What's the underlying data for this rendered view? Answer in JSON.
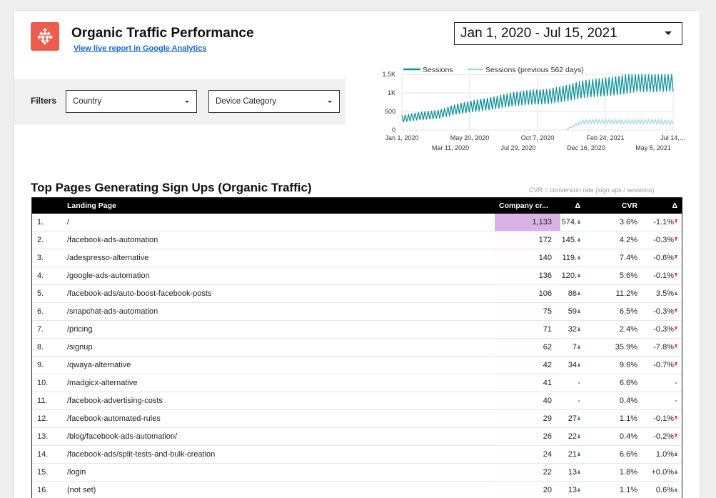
{
  "header": {
    "title": "Organic Traffic Performance",
    "live_link": "View live report in Google Analytics",
    "date_range": "Jan 1, 2020 - Jul 15, 2021",
    "logo_color": "#ea5d4f"
  },
  "filters": {
    "label": "Filters",
    "country": "Country",
    "device": "Device Category"
  },
  "chart_data": {
    "type": "line",
    "series": [
      {
        "name": "Sessions",
        "color": "#12939a"
      },
      {
        "name": "Sessions (previous 562 days)",
        "color": "#a6d6e0"
      }
    ],
    "y_ticks": [
      "1.5K",
      "1K",
      "500",
      "0"
    ],
    "ylim": [
      0,
      1500
    ],
    "x_ticks_top": [
      "Jan 1, 2020",
      "May 20, 2020",
      "Oct 7, 2020",
      "Feb 24, 2021",
      "Jul 14,…"
    ],
    "x_ticks_bottom": [
      "Mar 11, 2020",
      "Jul 29, 2020",
      "Dec 16, 2020",
      "May 5, 2021"
    ],
    "sessions_approx": [
      300,
      380,
      420,
      560,
      650,
      720,
      820,
      880,
      900,
      980,
      1100,
      1150,
      1200,
      1300,
      1300,
      1320
    ],
    "previous_approx": [
      0,
      0,
      0,
      0,
      0,
      0,
      0,
      0,
      0,
      0,
      220,
      230,
      220,
      220,
      230,
      200
    ]
  },
  "table": {
    "title": "Top Pages Generating Sign Ups (Organic Traffic)",
    "note": "CVR = conversion rate (sign ups / sessions)",
    "headers": {
      "page": "Landing Page",
      "signups": "Company cr...",
      "d1": "Δ",
      "cvr": "CVR",
      "d2": "Δ"
    },
    "highlight_color": "#d9b3e6",
    "rows": [
      {
        "idx": "1.",
        "page": "/",
        "signups": "1,133",
        "d1": "574.",
        "d1_dir": "up",
        "cvr": "3.6%",
        "d2": "-1.1%",
        "d2_dir": "down"
      },
      {
        "idx": "2.",
        "page": "/facebook-ads-automation",
        "signups": "172",
        "d1": "145.",
        "d1_dir": "up",
        "cvr": "4.2%",
        "d2": "-0.3%",
        "d2_dir": "down"
      },
      {
        "idx": "3.",
        "page": "/adespresso-alternative",
        "signups": "140",
        "d1": "119.",
        "d1_dir": "up",
        "cvr": "7.4%",
        "d2": "-0.6%",
        "d2_dir": "down"
      },
      {
        "idx": "4.",
        "page": "/google-ads-automation",
        "signups": "136",
        "d1": "120.",
        "d1_dir": "up",
        "cvr": "5.6%",
        "d2": "-0.1%",
        "d2_dir": "down"
      },
      {
        "idx": "5.",
        "page": "/facebook-ads/auto-boost-facebook-posts",
        "signups": "106",
        "d1": "86",
        "d1_dir": "up",
        "cvr": "11.2%",
        "d2": "3.5%",
        "d2_dir": "up"
      },
      {
        "idx": "6.",
        "page": "/snapchat-ads-automation",
        "signups": "75",
        "d1": "59",
        "d1_dir": "up",
        "cvr": "6.5%",
        "d2": "-0.3%",
        "d2_dir": "down"
      },
      {
        "idx": "7.",
        "page": "/pricing",
        "signups": "71",
        "d1": "32",
        "d1_dir": "up",
        "cvr": "2.4%",
        "d2": "-0.3%",
        "d2_dir": "down"
      },
      {
        "idx": "8.",
        "page": "/signup",
        "signups": "62",
        "d1": "7",
        "d1_dir": "up",
        "cvr": "35.9%",
        "d2": "-7.8%",
        "d2_dir": "down"
      },
      {
        "idx": "9.",
        "page": "/qwaya-alternative",
        "signups": "42",
        "d1": "34",
        "d1_dir": "up",
        "cvr": "9.6%",
        "d2": "-0.7%",
        "d2_dir": "down"
      },
      {
        "idx": "10.",
        "page": "/madgicx-alternative",
        "signups": "41",
        "d1": "-",
        "d1_dir": "",
        "cvr": "6.6%",
        "d2": "-",
        "d2_dir": ""
      },
      {
        "idx": "11.",
        "page": "/facebook-advertising-costs",
        "signups": "40",
        "d1": "-",
        "d1_dir": "",
        "cvr": "0.4%",
        "d2": "-",
        "d2_dir": ""
      },
      {
        "idx": "12.",
        "page": "/facebook-automated-rules",
        "signups": "29",
        "d1": "27",
        "d1_dir": "up",
        "cvr": "1.1%",
        "d2": "-0.1%",
        "d2_dir": "down"
      },
      {
        "idx": "13.",
        "page": "/blog/facebook-ads-automation/",
        "signups": "26",
        "d1": "22",
        "d1_dir": "up",
        "cvr": "0.4%",
        "d2": "-0.2%",
        "d2_dir": "down"
      },
      {
        "idx": "14.",
        "page": "/facebook-ads/split-tests-and-bulk-creation",
        "signups": "24",
        "d1": "21",
        "d1_dir": "up",
        "cvr": "6.6%",
        "d2": "1.0%",
        "d2_dir": "up"
      },
      {
        "idx": "15.",
        "page": "/login",
        "signups": "22",
        "d1": "13",
        "d1_dir": "up",
        "cvr": "1.8%",
        "d2": "+0.0%",
        "d2_dir": "up"
      },
      {
        "idx": "16.",
        "page": "(not set)",
        "signups": "20",
        "d1": "13",
        "d1_dir": "up",
        "cvr": "1.1%",
        "d2": "0.6%",
        "d2_dir": "up"
      }
    ]
  }
}
